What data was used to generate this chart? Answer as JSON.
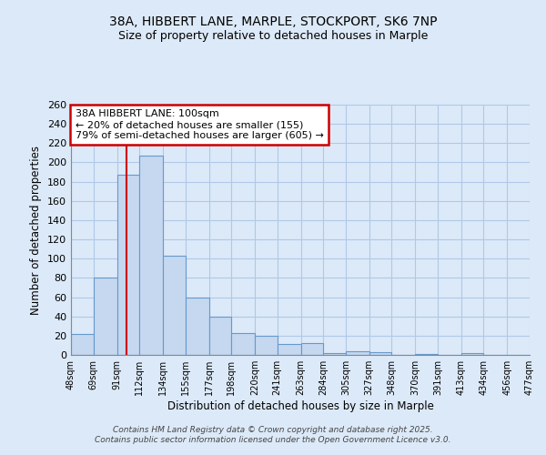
{
  "title1": "38A, HIBBERT LANE, MARPLE, STOCKPORT, SK6 7NP",
  "title2": "Size of property relative to detached houses in Marple",
  "xlabel": "Distribution of detached houses by size in Marple",
  "ylabel": "Number of detached properties",
  "bar_values": [
    22,
    80,
    187,
    207,
    103,
    60,
    40,
    23,
    20,
    11,
    12,
    2,
    4,
    3,
    0,
    1,
    0,
    2,
    0,
    0
  ],
  "bin_edges": [
    48,
    69,
    91,
    112,
    134,
    155,
    177,
    198,
    220,
    241,
    263,
    284,
    305,
    327,
    348,
    370,
    391,
    413,
    434,
    456,
    477
  ],
  "bar_color": "#c5d8f0",
  "bar_edge_color": "#6699cc",
  "redline_x": 100,
  "annotation_title": "38A HIBBERT LANE: 100sqm",
  "annotation_line1": "← 20% of detached houses are smaller (155)",
  "annotation_line2": "79% of semi-detached houses are larger (605) →",
  "annotation_box_color": "#ffffff",
  "annotation_border_color": "#cc0000",
  "redline_color": "#cc0000",
  "ylim": [
    0,
    260
  ],
  "yticks": [
    0,
    20,
    40,
    60,
    80,
    100,
    120,
    140,
    160,
    180,
    200,
    220,
    240,
    260
  ],
  "fig_bg_color": "#dce9f8",
  "axes_bg_color": "#dce9f8",
  "grid_color": "#b0c8e8",
  "footer1": "Contains HM Land Registry data © Crown copyright and database right 2025.",
  "footer2": "Contains public sector information licensed under the Open Government Licence v3.0."
}
